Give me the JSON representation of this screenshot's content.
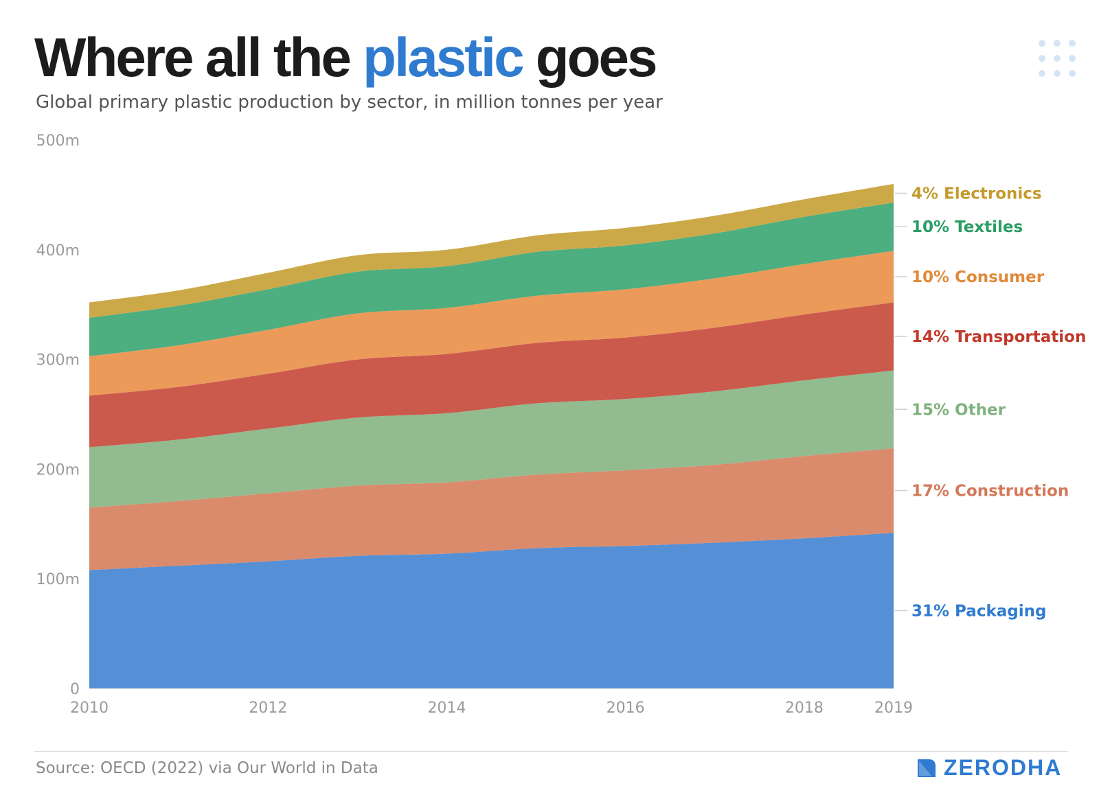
{
  "header": {
    "title_before": "Where all the",
    "title_accent": "plastic",
    "title_after": "goes",
    "subtitle": "Global primary plastic production by sector, in million tonnes per year"
  },
  "footer": {
    "source": "Source: OECD (2022) via Our World in Data",
    "brand": "ZERODHA"
  },
  "icons": {
    "decoration": "dot-grid-icon",
    "brand_mark": "zerodha-logo-icon"
  },
  "colors": {
    "title_accent": "#2f7bd0",
    "brand": "#2f7bd0",
    "axis_text": "#9a9a9a"
  },
  "chart_data": {
    "type": "area",
    "stacked": true,
    "title": "",
    "xlabel": "",
    "ylabel": "",
    "x": [
      2010,
      2011,
      2012,
      2013,
      2014,
      2015,
      2016,
      2017,
      2018,
      2019
    ],
    "xlim": [
      2010,
      2019
    ],
    "ylim": [
      0,
      500
    ],
    "x_ticks": [
      "2010",
      "2012",
      "2014",
      "2016",
      "2018",
      "2019"
    ],
    "x_tick_values": [
      2010,
      2012,
      2014,
      2016,
      2018,
      2019
    ],
    "y_ticks": [
      "0",
      "100m",
      "200m",
      "300m",
      "400m",
      "500m"
    ],
    "y_tick_values": [
      0,
      100,
      200,
      300,
      400,
      500
    ],
    "grid": false,
    "legend": "right-edge labels",
    "series": [
      {
        "name": "Packaging",
        "label": "31% Packaging",
        "color": "#5590d6",
        "label_color": "#2f7bd0",
        "values": [
          108,
          112,
          116,
          121,
          123,
          128,
          130,
          133,
          137,
          142
        ]
      },
      {
        "name": "Construction",
        "label": "17% Construction",
        "color": "#da8b6b",
        "label_color": "#d4785a",
        "values": [
          57,
          59,
          62,
          64,
          65,
          67,
          69,
          71,
          75,
          77
        ]
      },
      {
        "name": "Other",
        "label": "15% Other",
        "color": "#92bb90",
        "label_color": "#7fb27f",
        "values": [
          55,
          56,
          59,
          62,
          63,
          65,
          65,
          67,
          69,
          71
        ]
      },
      {
        "name": "Transportation",
        "label": "14% Transportation",
        "color": "#cb5a4c",
        "label_color": "#c0392b",
        "values": [
          47,
          48,
          50,
          53,
          54,
          55,
          56,
          58,
          60,
          62
        ]
      },
      {
        "name": "Consumer",
        "label": "10% Consumer",
        "color": "#eb9a5a",
        "label_color": "#e08a3c",
        "values": [
          36,
          38,
          40,
          42,
          42,
          43,
          44,
          45,
          46,
          47
        ]
      },
      {
        "name": "Textiles",
        "label": "10% Textiles",
        "color": "#4dae80",
        "label_color": "#2a9d63",
        "values": [
          35,
          36,
          37,
          38,
          38,
          40,
          40,
          41,
          43,
          44
        ]
      },
      {
        "name": "Electronics",
        "label": "4% Electronics",
        "color": "#cca948",
        "label_color": "#c49a2c",
        "values": [
          14,
          14,
          15,
          15,
          15,
          15,
          16,
          16,
          16,
          17
        ]
      }
    ]
  }
}
